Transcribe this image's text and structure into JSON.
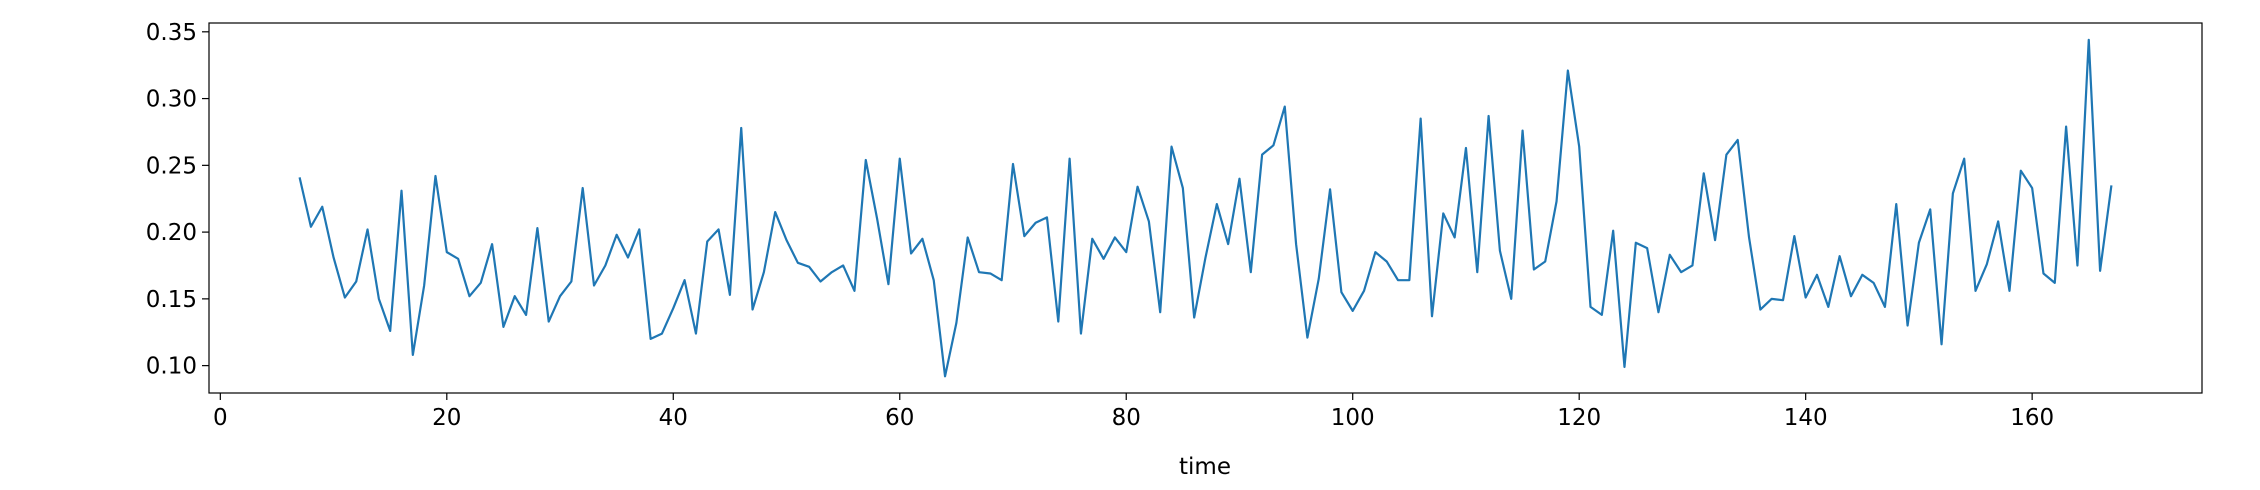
{
  "chart_data": {
    "type": "line",
    "xlabel": "time",
    "color": "#1f77b4",
    "x": [
      7,
      8,
      9,
      10,
      11,
      12,
      13,
      14,
      15,
      16,
      17,
      18,
      19,
      20,
      21,
      22,
      23,
      24,
      25,
      26,
      27,
      28,
      29,
      30,
      31,
      32,
      33,
      34,
      35,
      36,
      37,
      38,
      39,
      40,
      41,
      42,
      43,
      44,
      45,
      46,
      47,
      48,
      49,
      50,
      51,
      52,
      53,
      54,
      55,
      56,
      57,
      58,
      59,
      60,
      61,
      62,
      63,
      64,
      65,
      66,
      67,
      68,
      69,
      70,
      71,
      72,
      73,
      74,
      75,
      76,
      77,
      78,
      79,
      80,
      81,
      82,
      83,
      84,
      85,
      86,
      87,
      88,
      89,
      90,
      91,
      92,
      93,
      94,
      95,
      96,
      97,
      98,
      99,
      100,
      101,
      102,
      103,
      104,
      105,
      106,
      107,
      108,
      109,
      110,
      111,
      112,
      113,
      114,
      115,
      116,
      117,
      118,
      119,
      120,
      121,
      122,
      123,
      124,
      125,
      126,
      127,
      128,
      129,
      130,
      131,
      132,
      133,
      134,
      135,
      136,
      137,
      138,
      139,
      140,
      141,
      142,
      143,
      144,
      145,
      146,
      147,
      148,
      149,
      150,
      151,
      152,
      153,
      154,
      155,
      156,
      157,
      158,
      159,
      160,
      161,
      162,
      163,
      164,
      165,
      166,
      167
    ],
    "values": [
      0.241,
      0.204,
      0.219,
      0.181,
      0.151,
      0.163,
      0.202,
      0.15,
      0.126,
      0.231,
      0.108,
      0.16,
      0.242,
      0.185,
      0.18,
      0.152,
      0.162,
      0.191,
      0.129,
      0.152,
      0.138,
      0.203,
      0.133,
      0.152,
      0.163,
      0.233,
      0.16,
      0.175,
      0.198,
      0.181,
      0.202,
      0.12,
      0.124,
      0.143,
      0.164,
      0.124,
      0.193,
      0.202,
      0.153,
      0.278,
      0.142,
      0.17,
      0.215,
      0.194,
      0.177,
      0.174,
      0.163,
      0.17,
      0.175,
      0.156,
      0.254,
      0.21,
      0.161,
      0.255,
      0.184,
      0.195,
      0.164,
      0.092,
      0.132,
      0.196,
      0.17,
      0.169,
      0.164,
      0.251,
      0.197,
      0.207,
      0.211,
      0.133,
      0.255,
      0.124,
      0.195,
      0.18,
      0.196,
      0.185,
      0.234,
      0.208,
      0.14,
      0.264,
      0.233,
      0.136,
      0.181,
      0.221,
      0.191,
      0.24,
      0.17,
      0.258,
      0.265,
      0.294,
      0.191,
      0.121,
      0.165,
      0.232,
      0.155,
      0.141,
      0.156,
      0.185,
      0.178,
      0.164,
      0.164,
      0.285,
      0.137,
      0.214,
      0.196,
      0.263,
      0.17,
      0.287,
      0.186,
      0.15,
      0.276,
      0.172,
      0.178,
      0.223,
      0.321,
      0.264,
      0.144,
      0.138,
      0.201,
      0.099,
      0.192,
      0.188,
      0.14,
      0.183,
      0.17,
      0.175,
      0.244,
      0.194,
      0.258,
      0.269,
      0.196,
      0.142,
      0.15,
      0.149,
      0.197,
      0.151,
      0.168,
      0.144,
      0.182,
      0.152,
      0.168,
      0.162,
      0.144,
      0.221,
      0.13,
      0.192,
      0.217,
      0.116,
      0.229,
      0.255,
      0.156,
      0.176,
      0.208,
      0.156,
      0.246,
      0.233,
      0.169,
      0.162,
      0.279,
      0.175,
      0.344,
      0.171,
      0.235
    ],
    "xlim": [
      -1,
      175
    ],
    "xticks": [
      0,
      20,
      40,
      60,
      80,
      100,
      120,
      140,
      160
    ],
    "ylim": [
      0.0795,
      0.3566
    ],
    "yticks": [
      {
        "value": 0.1,
        "label": "0.10"
      },
      0.15,
      {
        "value": 0.2,
        "label": "0.20"
      },
      0.25,
      {
        "value": 0.3,
        "label": "0.30"
      },
      0.35
    ],
    "grid": false
  }
}
